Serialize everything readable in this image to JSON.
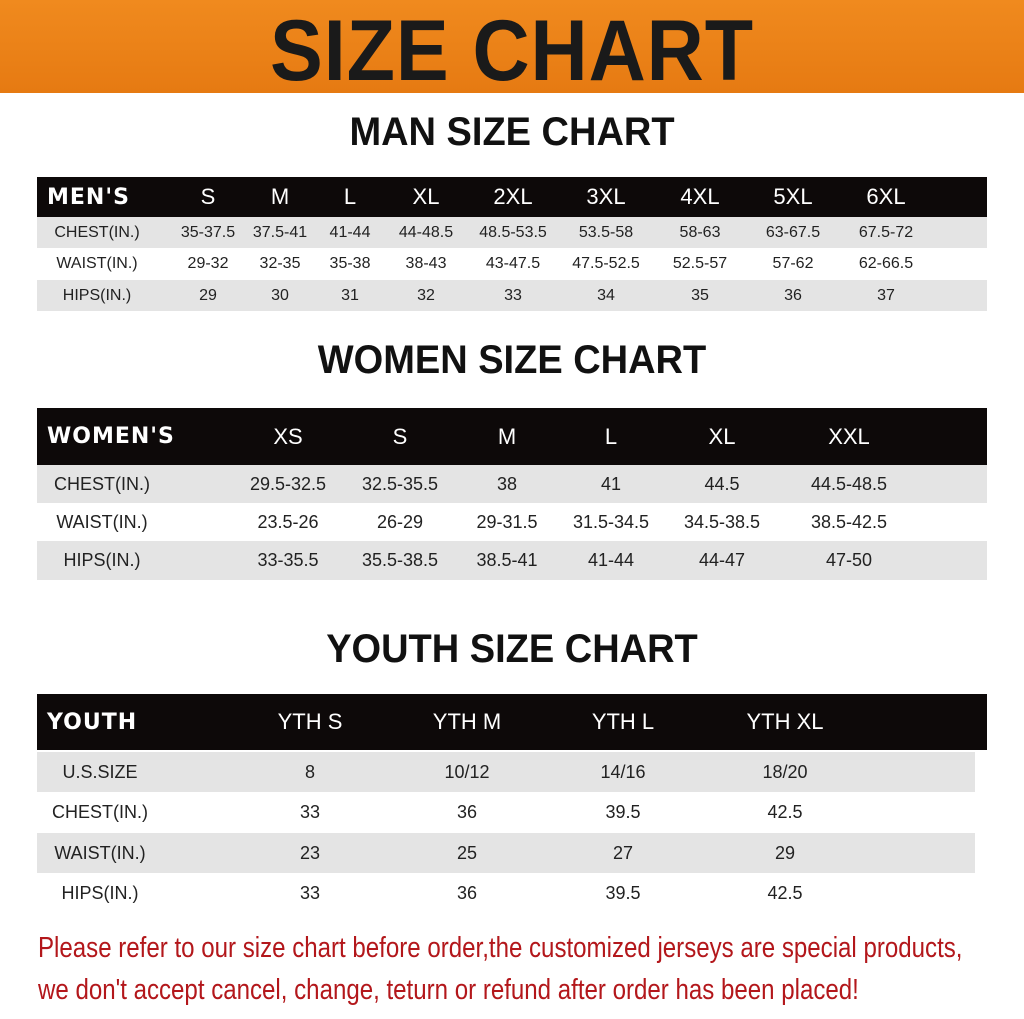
{
  "banner_title": "SIZE CHART",
  "men": {
    "title": "MAN SIZE CHART",
    "header": [
      "MEN'S",
      "S",
      "M",
      "L",
      "XL",
      "2XL",
      "3XL",
      "4XL",
      "5XL",
      "6XL"
    ],
    "rows": [
      [
        "CHEST(IN.)",
        "35-37.5",
        "37.5-41",
        "41-44",
        "44-48.5",
        "48.5-53.5",
        "53.5-58",
        "58-63",
        "63-67.5",
        "67.5-72"
      ],
      [
        "WAIST(IN.)",
        "29-32",
        "32-35",
        "35-38",
        "38-43",
        "43-47.5",
        "47.5-52.5",
        "52.5-57",
        "57-62",
        "62-66.5"
      ],
      [
        "HIPS(IN.)",
        "29",
        "30",
        "31",
        "32",
        "33",
        "34",
        "35",
        "36",
        "37"
      ]
    ]
  },
  "women": {
    "title": "WOMEN SIZE CHART",
    "header": [
      "WOMEN'S",
      "XS",
      "S",
      "M",
      "L",
      "XL",
      "XXL"
    ],
    "rows": [
      [
        "CHEST(IN.)",
        "29.5-32.5",
        "32.5-35.5",
        "38",
        "41",
        "44.5",
        "44.5-48.5"
      ],
      [
        "WAIST(IN.)",
        "23.5-26",
        "26-29",
        "29-31.5",
        "31.5-34.5",
        "34.5-38.5",
        "38.5-42.5"
      ],
      [
        "HIPS(IN.)",
        "33-35.5",
        "35.5-38.5",
        "38.5-41",
        "41-44",
        "44-47",
        "47-50"
      ]
    ]
  },
  "youth": {
    "title": "YOUTH SIZE CHART",
    "header": [
      "YOUTH",
      "YTH S",
      "YTH M",
      "YTH L",
      "YTH XL"
    ],
    "rows": [
      [
        "U.S.SIZE",
        "8",
        "10/12",
        "14/16",
        "18/20"
      ],
      [
        "CHEST(IN.)",
        "33",
        "36",
        "39.5",
        "42.5"
      ],
      [
        "WAIST(IN.)",
        "23",
        "25",
        "27",
        "29"
      ],
      [
        "HIPS(IN.)",
        "33",
        "36",
        "39.5",
        "42.5"
      ]
    ]
  },
  "notice": [
    "Please refer to our size chart before order,the customized jerseys are special products,",
    "we don't accept cancel, change, teturn or refund after order has been placed!"
  ],
  "colors": {
    "banner": "#ee8419",
    "header_bg": "#0d0909",
    "stripe": "#e4e4e4",
    "notice": "#b3171b"
  }
}
